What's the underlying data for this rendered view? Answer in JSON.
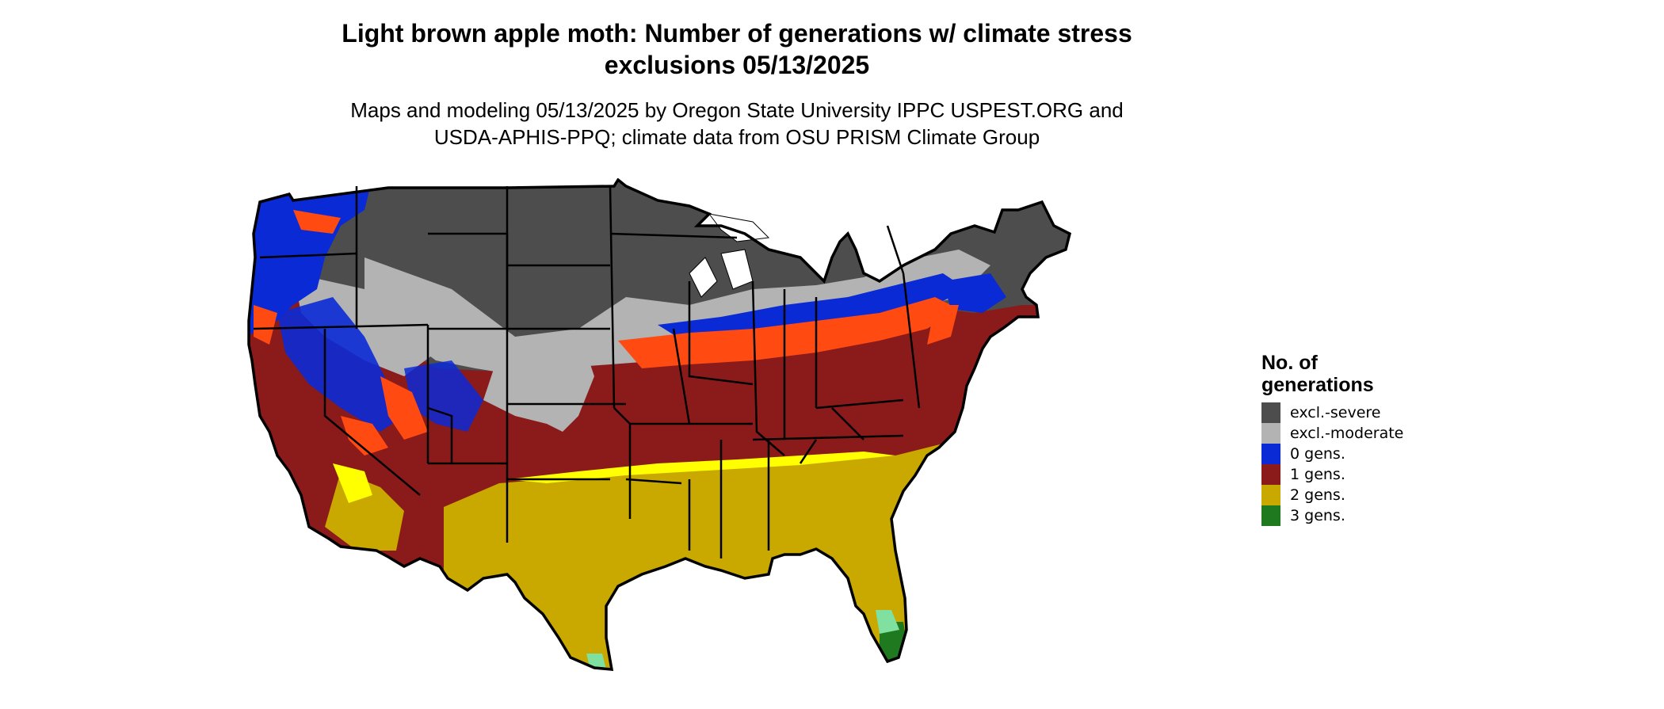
{
  "title": {
    "line1": "Light brown apple moth: Number of generations w/ climate stress",
    "line2": "exclusions 05/13/2025"
  },
  "subtitle": {
    "line1": "Maps and modeling 05/13/2025 by Oregon State University IPPC USPEST.ORG and",
    "line2": "USDA-APHIS-PPQ; climate data from OSU PRISM Climate Group"
  },
  "legend": {
    "title_line1": "No. of",
    "title_line2": "generations",
    "items": [
      {
        "label": "excl.-severe",
        "color": "#4d4d4d"
      },
      {
        "label": "excl.-moderate",
        "color": "#b3b3b3"
      },
      {
        "label": "0 gens.",
        "color": "#0a2ad6"
      },
      {
        "label": "1 gens.",
        "color": "#8b1a1a"
      },
      {
        "label": "2 gens.",
        "color": "#c9a800"
      },
      {
        "label": "3 gens.",
        "color": "#1f7a1f"
      }
    ]
  },
  "colors": {
    "excl_severe": "#4d4d4d",
    "excl_moderate": "#b3b3b3",
    "gen0": "#0a2ad6",
    "gen1": "#8b1a1a",
    "gen2": "#c9a800",
    "gen3": "#1f7a1f",
    "gen1_light": "#ff4a12",
    "gen2_light": "#ffff00",
    "gen3_light": "#80e0a0",
    "border": "#000000"
  }
}
